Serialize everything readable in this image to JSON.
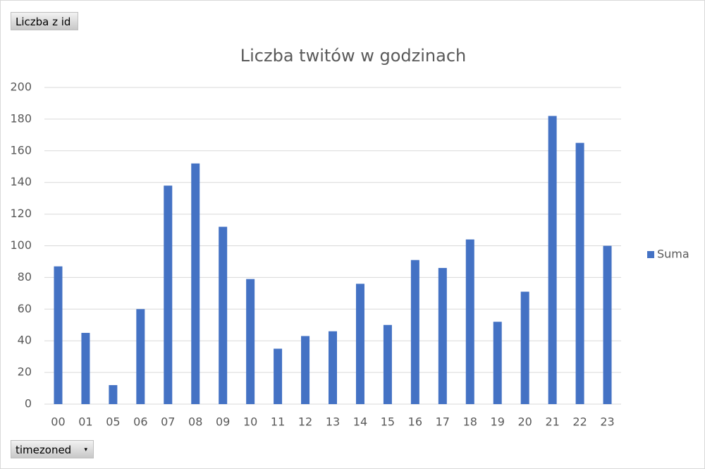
{
  "chart_data": {
    "type": "bar",
    "title": "Liczba twitów w godzinach",
    "value_field_button": "Liczba z id",
    "axis_field_button": "timezoned",
    "categories": [
      "00",
      "01",
      "05",
      "06",
      "07",
      "08",
      "09",
      "10",
      "11",
      "12",
      "13",
      "14",
      "15",
      "16",
      "17",
      "18",
      "19",
      "20",
      "21",
      "22",
      "23"
    ],
    "series": [
      {
        "name": "Suma",
        "color": "#4472c4",
        "values": [
          87,
          45,
          12,
          60,
          138,
          152,
          112,
          79,
          35,
          43,
          46,
          76,
          50,
          91,
          86,
          104,
          52,
          71,
          182,
          165,
          100
        ]
      }
    ],
    "ylim": [
      0,
      200
    ],
    "yticks": [
      0,
      20,
      40,
      60,
      80,
      100,
      120,
      140,
      160,
      180,
      200
    ],
    "grid": true,
    "legend": "right"
  }
}
